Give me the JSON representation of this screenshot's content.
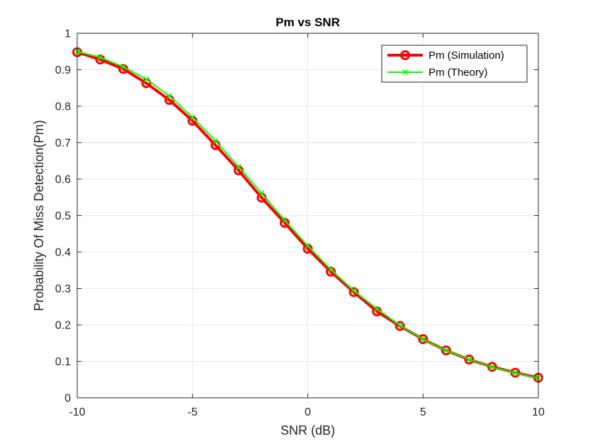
{
  "chart_data": {
    "type": "line",
    "title": "Pm vs SNR",
    "xlabel": "SNR (dB)",
    "ylabel": "Probability Of Miss Detection(Pm)",
    "xlim": [
      -10,
      10
    ],
    "ylim": [
      0,
      1
    ],
    "xticks": [
      -10,
      -5,
      0,
      5,
      10
    ],
    "yticks": [
      0,
      0.1,
      0.2,
      0.3,
      0.4,
      0.5,
      0.6,
      0.7,
      0.8,
      0.9,
      1
    ],
    "xtick_labels": [
      "-10",
      "-5",
      "0",
      "5",
      "10"
    ],
    "ytick_labels": [
      "0",
      "0.1",
      "0.2",
      "0.3",
      "0.4",
      "0.5",
      "0.6",
      "0.7",
      "0.8",
      "0.9",
      "1"
    ],
    "grid": true,
    "legend_position": "top-right",
    "x": [
      -10,
      -9,
      -8,
      -7,
      -6,
      -5,
      -4,
      -3,
      -2,
      -1,
      0,
      1,
      2,
      3,
      4,
      5,
      6,
      7,
      8,
      9,
      10
    ],
    "series": [
      {
        "name": "Pm (Simulation)",
        "color": "#ff0000",
        "marker": "circle",
        "values": [
          0.948,
          0.928,
          0.902,
          0.863,
          0.817,
          0.76,
          0.693,
          0.624,
          0.549,
          0.48,
          0.409,
          0.346,
          0.29,
          0.237,
          0.197,
          0.161,
          0.13,
          0.105,
          0.085,
          0.069,
          0.055
        ]
      },
      {
        "name": "Pm (Theory)",
        "color": "#00ff00",
        "marker": "x",
        "values": [
          0.95,
          0.934,
          0.908,
          0.874,
          0.828,
          0.77,
          0.705,
          0.634,
          0.561,
          0.487,
          0.417,
          0.352,
          0.294,
          0.244,
          0.199,
          0.161,
          0.13,
          0.106,
          0.084,
          0.068,
          0.054
        ]
      }
    ]
  }
}
